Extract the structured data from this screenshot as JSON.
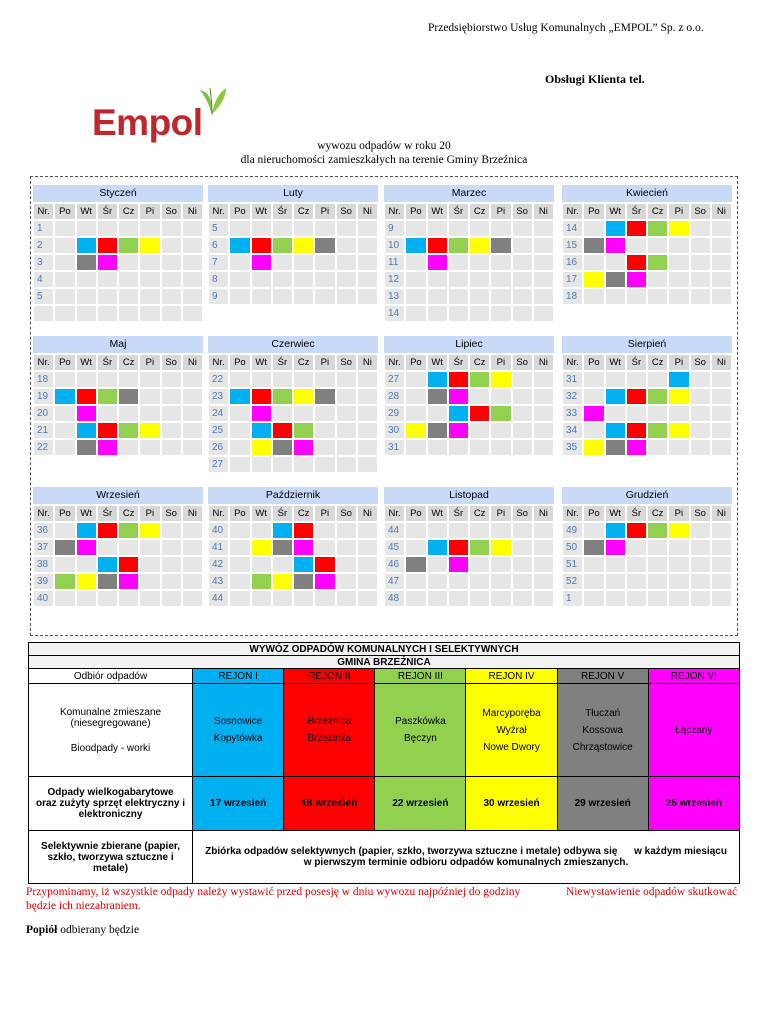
{
  "header": {
    "company": "Przedsiębiorstwo Usług Komunalnych „EMPOL” Sp. z o.o.",
    "customer_service": "Obsługi Klienta tel.",
    "logo_text": "Empol"
  },
  "titles": {
    "line1": "wywozu odpadów w roku 20",
    "line2": "dla nieruchomości zamieszkałych na terenie Gminy Brzeźnica"
  },
  "calendar": {
    "day_headers": [
      "Nr.",
      "Po",
      "Wt",
      "Śr",
      "Cz",
      "Pi",
      "So",
      "Ni"
    ],
    "color_map": {
      "b": "#00b0f0",
      "r": "#ff0000",
      "g": "#92d050",
      "y": "#ffff00",
      "k": "#808080",
      "m": "#ff00ff"
    },
    "months": [
      {
        "name": "Styczeń",
        "rows": [
          [
            "1",
            []
          ],
          [
            "2",
            [
              "",
              "b",
              "r",
              "g",
              "y"
            ]
          ],
          [
            "3",
            [
              "",
              "k",
              "m"
            ]
          ],
          [
            "4",
            []
          ],
          [
            "5",
            []
          ],
          [
            "",
            []
          ]
        ]
      },
      {
        "name": "Luty",
        "rows": [
          [
            "5",
            []
          ],
          [
            "6",
            [
              "b",
              "r",
              "g",
              "y",
              "k"
            ]
          ],
          [
            "7",
            [
              "",
              "m"
            ]
          ],
          [
            "8",
            []
          ],
          [
            "9",
            []
          ]
        ]
      },
      {
        "name": "Marzec",
        "rows": [
          [
            "9",
            []
          ],
          [
            "10",
            [
              "b",
              "r",
              "g",
              "y",
              "k"
            ]
          ],
          [
            "11",
            [
              "",
              "m"
            ]
          ],
          [
            "12",
            []
          ],
          [
            "13",
            []
          ],
          [
            "14",
            []
          ]
        ]
      },
      {
        "name": "Kwiecień",
        "rows": [
          [
            "14",
            [
              "",
              "b",
              "r",
              "g",
              "y"
            ]
          ],
          [
            "15",
            [
              "k",
              "m"
            ]
          ],
          [
            "16",
            [
              "",
              "",
              "r",
              "g"
            ]
          ],
          [
            "17",
            [
              "y",
              "k",
              "m"
            ]
          ],
          [
            "18",
            []
          ]
        ]
      },
      {
        "name": "Maj",
        "rows": [
          [
            "18",
            []
          ],
          [
            "19",
            [
              "b",
              "r",
              "g",
              "k"
            ]
          ],
          [
            "20",
            [
              "",
              "m"
            ]
          ],
          [
            "21",
            [
              "",
              "b",
              "r",
              "g",
              "y"
            ]
          ],
          [
            "22",
            [
              "",
              "k",
              "m"
            ]
          ]
        ]
      },
      {
        "name": "Czerwiec",
        "rows": [
          [
            "22",
            []
          ],
          [
            "23",
            [
              "b",
              "r",
              "g",
              "y",
              "k"
            ]
          ],
          [
            "24",
            [
              "",
              "m"
            ]
          ],
          [
            "25",
            [
              "",
              "b",
              "r",
              "g"
            ]
          ],
          [
            "26",
            [
              "",
              "y",
              "k",
              "m"
            ]
          ],
          [
            "27",
            []
          ]
        ]
      },
      {
        "name": "Lipiec",
        "rows": [
          [
            "27",
            [
              "",
              "b",
              "r",
              "g",
              "y"
            ]
          ],
          [
            "28",
            [
              "",
              "k",
              "m"
            ]
          ],
          [
            "29",
            [
              "",
              "",
              "b",
              "r",
              "g"
            ]
          ],
          [
            "30",
            [
              "y",
              "k",
              "m"
            ]
          ],
          [
            "31",
            []
          ]
        ]
      },
      {
        "name": "Sierpień",
        "rows": [
          [
            "31",
            [
              "",
              "",
              "",
              "",
              "b"
            ]
          ],
          [
            "32",
            [
              "",
              "b",
              "r",
              "g",
              "y"
            ]
          ],
          [
            "33",
            [
              "m"
            ]
          ],
          [
            "34",
            [
              "",
              "b",
              "r",
              "g",
              "y"
            ]
          ],
          [
            "35",
            [
              "y",
              "k",
              "m"
            ]
          ]
        ]
      },
      {
        "name": "Wrzesień",
        "rows": [
          [
            "36",
            [
              "",
              "b",
              "r",
              "g",
              "y"
            ]
          ],
          [
            "37",
            [
              "k",
              "m"
            ]
          ],
          [
            "38",
            [
              "",
              "",
              "b",
              "r"
            ]
          ],
          [
            "39",
            [
              "g",
              "y",
              "k",
              "m"
            ]
          ],
          [
            "40",
            []
          ]
        ]
      },
      {
        "name": "Październik",
        "rows": [
          [
            "40",
            [
              "",
              "",
              "b",
              "r"
            ]
          ],
          [
            "41",
            [
              "",
              "y",
              "k",
              "m"
            ]
          ],
          [
            "42",
            [
              "",
              "",
              "",
              "b",
              "r"
            ]
          ],
          [
            "43",
            [
              "",
              "g",
              "y",
              "k",
              "m"
            ]
          ],
          [
            "44",
            []
          ]
        ]
      },
      {
        "name": "Listopad",
        "rows": [
          [
            "44",
            []
          ],
          [
            "45",
            [
              "",
              "b",
              "r",
              "g",
              "y"
            ]
          ],
          [
            "46",
            [
              "k",
              "",
              "m"
            ]
          ],
          [
            "47",
            []
          ],
          [
            "48",
            []
          ]
        ]
      },
      {
        "name": "Grudzień",
        "rows": [
          [
            "49",
            [
              "",
              "b",
              "r",
              "g",
              "y"
            ]
          ],
          [
            "50",
            [
              "k",
              "m"
            ]
          ],
          [
            "51",
            []
          ],
          [
            "52",
            []
          ],
          [
            "1",
            []
          ]
        ]
      }
    ]
  },
  "table": {
    "title": "WYWÓZ ODPADÓW KOMUNALNYCH I SELEKTYWNYCH",
    "subtitle": "GMINA BRZEŹNICA",
    "col0_header": "Odbiór odpadów",
    "regions": [
      {
        "name": "REJON I",
        "color": "#00b0f0",
        "localities": [
          "Sosnowice",
          "Kopytówka"
        ],
        "bulky": "17 wrzesień"
      },
      {
        "name": "REJON II",
        "color": "#ff0000",
        "localities": [
          "Brzeźnica",
          "Brzezinka"
        ],
        "bulky": "18 wrzesień"
      },
      {
        "name": "REJON III",
        "color": "#92d050",
        "localities": [
          "Paszkówka",
          "Bęczyn"
        ],
        "bulky": "22 wrzesień"
      },
      {
        "name": "REJON IV",
        "color": "#ffff00",
        "localities": [
          "Marcyporęba",
          "Wyźrał",
          "Nowe Dwory"
        ],
        "bulky": "30 wrzesień"
      },
      {
        "name": "REJON V",
        "color": "#808080",
        "localities": [
          "Tłuczań",
          "Kossowa",
          "Chrząstowice"
        ],
        "bulky": "29 wrzesień"
      },
      {
        "name": "REJON VI",
        "color": "#ff00ff",
        "localities": [
          "Łączany"
        ],
        "bulky": "25 wrzesień"
      }
    ],
    "row1_label_a": "Komunalne zmieszane",
    "row1_label_b": "(niesegregowane)",
    "row1_label_c": "Bioodpady - worki",
    "row2_label_a": "Odpady wielkogabarytowe",
    "row2_label_b": "oraz zużyty sprzęt elektryczny i",
    "row2_label_c": "elektroniczny",
    "row3_label_a": "Selektywnie zbierane (papier,",
    "row3_label_b": "szkło, tworzywa sztuczne i",
    "row3_label_c": "metale)",
    "row3_text_a": "Zbiórka odpadów selektywnych (papier, szkło, tworzywa sztuczne i metale) odbywa się      w każdym miesiącu",
    "row3_text_b": "w pierwszym terminie odbioru odpadów komunalnych zmieszanych."
  },
  "notes": {
    "reminder_1": "Przypominamy, iż wszystkie odpady należy wystawić przed posesję w dniu wywozu najpóźniej do godziny",
    "reminder_right": "Niewystawienie odpadów skutkować",
    "reminder_2": "będzie ich niezabraniem.",
    "popiol_bold": "Popiół",
    "popiol_rest": " odbierany będzie"
  }
}
